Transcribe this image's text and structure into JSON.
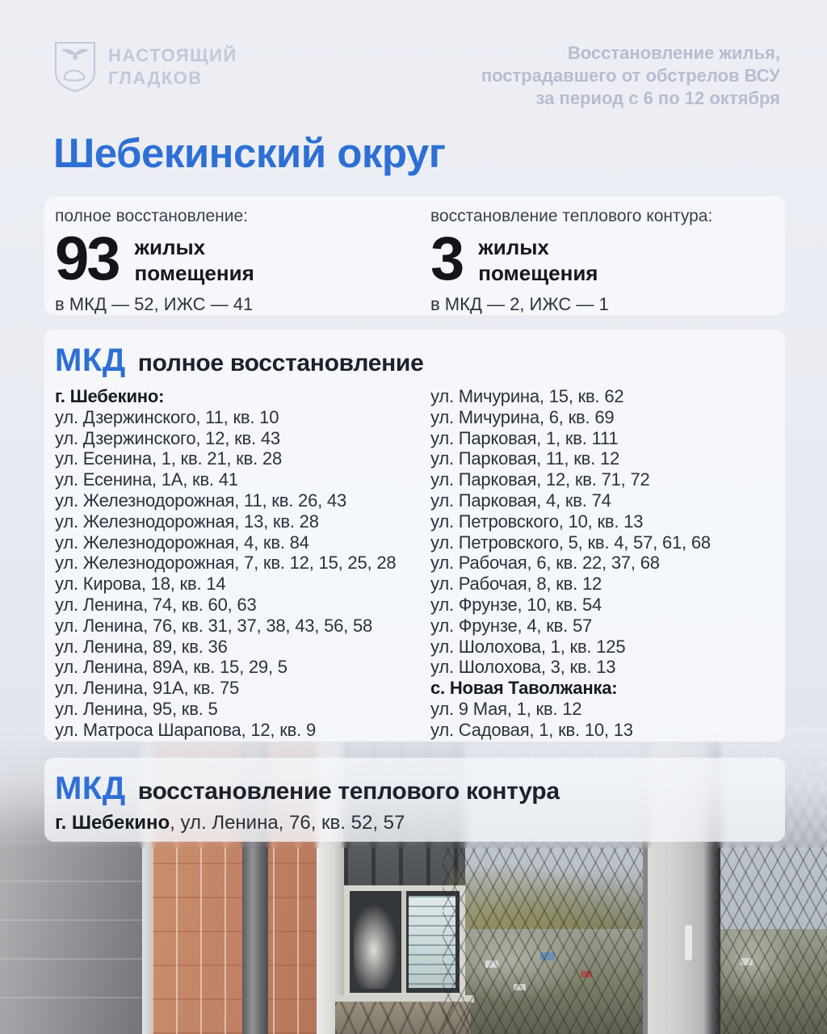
{
  "header": {
    "logo_line1": "НАСТОЯЩИЙ",
    "logo_line2": "ГЛАДКОВ",
    "emblem": "belgorod-coat-of-arms",
    "subtitle_lines": [
      "Восстановление жилья,",
      "пострадавшего от обстрелов ВСУ",
      "за период с 6 по 12 октября"
    ]
  },
  "title": "Шебекинский округ",
  "stats": [
    {
      "label": "полное восстановление:",
      "value": "93",
      "unit_line1": "жилых",
      "unit_line2": "помещения",
      "breakdown": "в МКД — 52, ИЖС — 41"
    },
    {
      "label": "восстановление теплового контура:",
      "value": "3",
      "unit_line1": "жилых",
      "unit_line2": "помещения",
      "breakdown": "в МКД — 2, ИЖС — 1"
    }
  ],
  "full_restoration": {
    "tag": "МКД",
    "heading": "полное восстановление",
    "col_left": [
      {
        "text": "г. Шебекино:",
        "bold": true
      },
      {
        "text": "ул. Дзержинского, 11, кв. 10",
        "bold": false
      },
      {
        "text": "ул. Дзержинского, 12, кв. 43",
        "bold": false
      },
      {
        "text": "ул. Есенина, 1, кв. 21, кв. 28",
        "bold": false
      },
      {
        "text": "ул. Есенина, 1А, кв. 41",
        "bold": false
      },
      {
        "text": "ул. Железнодорожная, 11, кв. 26, 43",
        "bold": false
      },
      {
        "text": "ул. Железнодорожная, 13, кв. 28",
        "bold": false
      },
      {
        "text": "ул. Железнодорожная, 4, кв. 84",
        "bold": false
      },
      {
        "text": "ул. Железнодорожная, 7, кв. 12, 15, 25, 28",
        "bold": false
      },
      {
        "text": "ул. Кирова, 18, кв. 14",
        "bold": false
      },
      {
        "text": "ул. Ленина, 74, кв. 60, 63",
        "bold": false
      },
      {
        "text": "ул. Ленина, 76, кв. 31, 37, 38, 43, 56, 58",
        "bold": false
      },
      {
        "text": "ул. Ленина, 89, кв. 36",
        "bold": false
      },
      {
        "text": "ул. Ленина, 89А, кв. 15, 29, 5",
        "bold": false
      },
      {
        "text": "ул. Ленина, 91А, кв. 75",
        "bold": false
      },
      {
        "text": "ул. Ленина, 95, кв. 5",
        "bold": false
      },
      {
        "text": "ул. Матроса Шарапова, 12, кв. 9",
        "bold": false
      }
    ],
    "col_right": [
      {
        "text": "ул. Мичурина, 15, кв. 62",
        "bold": false
      },
      {
        "text": "ул. Мичурина, 6, кв. 69",
        "bold": false
      },
      {
        "text": "ул. Парковая, 1, кв. 111",
        "bold": false
      },
      {
        "text": "ул. Парковая, 11, кв. 12",
        "bold": false
      },
      {
        "text": "ул. Парковая, 12, кв. 71, 72",
        "bold": false
      },
      {
        "text": "ул. Парковая, 4, кв. 74",
        "bold": false
      },
      {
        "text": "ул. Петровского, 10, кв. 13",
        "bold": false
      },
      {
        "text": "ул. Петровского, 5, кв. 4, 57, 61, 68",
        "bold": false
      },
      {
        "text": "ул. Рабочая, 6, кв. 22, 37, 68",
        "bold": false
      },
      {
        "text": "ул. Рабочая, 8, кв. 12",
        "bold": false
      },
      {
        "text": "ул. Фрунзе, 10, кв. 54",
        "bold": false
      },
      {
        "text": "ул. Фрунзе, 4, кв. 57",
        "bold": false
      },
      {
        "text": "ул. Шолохова, 1, кв. 125",
        "bold": false
      },
      {
        "text": "ул. Шолохова, 3, кв. 13",
        "bold": false
      },
      {
        "text": "с. Новая Таволжанка:",
        "bold": true
      },
      {
        "text": "ул. 9 Мая, 1, кв. 12",
        "bold": false
      },
      {
        "text": "ул. Садовая, 1, кв. 10, 13",
        "bold": false
      }
    ]
  },
  "thermal_restoration": {
    "tag": "МКД",
    "heading": "восстановление теплового контура",
    "line_bold": "г. Шебекино",
    "line_rest": ", ул. Ленина, 76, кв. 52, 57"
  },
  "photo_caption": "вид из окна: кирпичная стена, балкон с окном, защитная сетка, осенний город вдали",
  "colors": {
    "accent_blue": "#2e6fd6",
    "text_dark": "#141519",
    "muted_header": "#b6bdcf",
    "card_bg": "#f4f6fa",
    "page_bg_top": "#edeff5",
    "page_bg_bottom": "#dde1ea"
  }
}
